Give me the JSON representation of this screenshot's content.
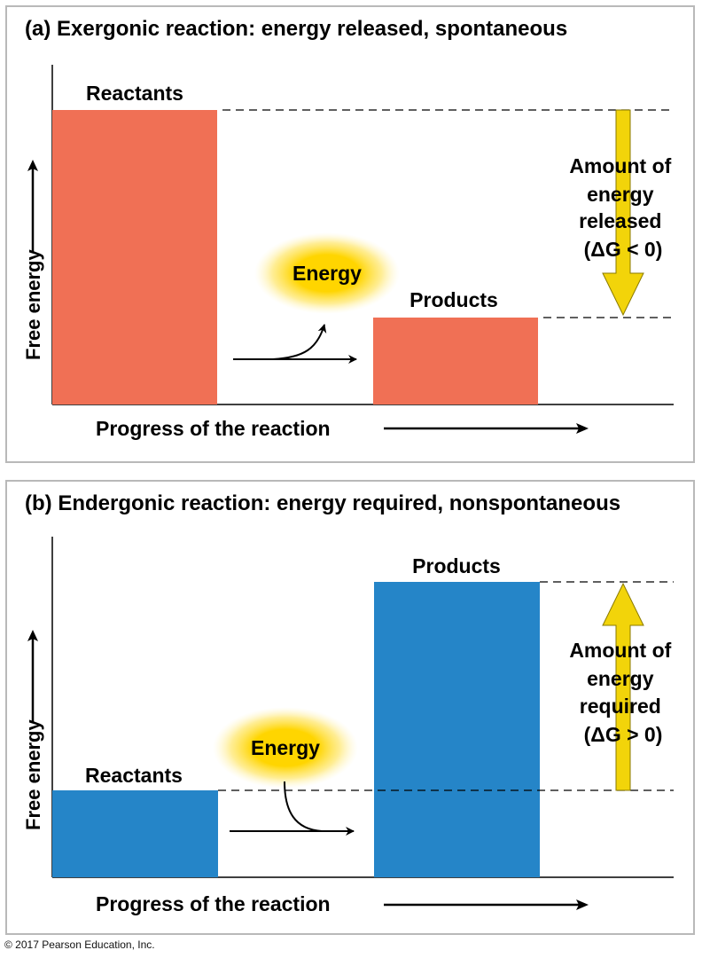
{
  "colors": {
    "exergonic_bar": "#f07055",
    "endergonic_bar": "#2585c8",
    "energy_arrow": "#f2d40a",
    "energy_glow": "#ffd500",
    "frame": "#b9b9b9"
  },
  "panel_a": {
    "title": "(a) Exergonic reaction: energy released, spontaneous",
    "y_axis_label": "Free energy",
    "x_axis_label": "Progress of the reaction",
    "reactants_label": "Reactants",
    "products_label": "Products",
    "energy_label": "Energy",
    "delta_lines": [
      "Amount of",
      "energy",
      "released",
      "(ΔG < 0)"
    ],
    "reactants_level": 1.0,
    "products_level": 0.29
  },
  "panel_b": {
    "title": "(b) Endergonic reaction: energy required, nonspontaneous",
    "y_axis_label": "Free energy",
    "x_axis_label": "Progress of the reaction",
    "reactants_label": "Reactants",
    "products_label": "Products",
    "energy_label": "Energy",
    "delta_lines": [
      "Amount of",
      "energy",
      "required",
      "(ΔG > 0)"
    ],
    "reactants_level": 0.29,
    "products_level": 1.0
  },
  "footer": "© 2017 Pearson Education, Inc."
}
